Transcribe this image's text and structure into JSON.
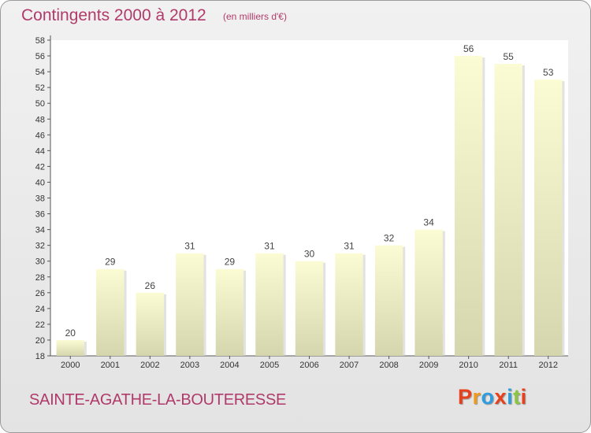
{
  "header": {
    "title": "Contingents 2000 à 2012",
    "subtitle": "(en milliers d'€)"
  },
  "footer": {
    "commune": "SAINTE-AGATHE-LA-BOUTERESSE",
    "logo_letters": [
      "P",
      "r",
      "o",
      "x",
      "i",
      "t",
      "i"
    ]
  },
  "colors": {
    "title": "#b03a6a",
    "bar_light": "#fbfbd4",
    "bar_dark": "#d6d6ae",
    "logo": [
      "#e8401c",
      "#f09a1a",
      "#2e9de0",
      "#e8401c",
      "#2e9de0",
      "#8cc63f",
      "#e8401c"
    ]
  },
  "chart_data": {
    "type": "bar",
    "title": "Contingents 2000 à 2012",
    "subtitle": "(en milliers d'€)",
    "categories": [
      "2000",
      "2001",
      "2002",
      "2003",
      "2004",
      "2005",
      "2006",
      "2007",
      "2008",
      "2009",
      "2010",
      "2011",
      "2012"
    ],
    "values": [
      20,
      29,
      26,
      31,
      29,
      31,
      30,
      31,
      32,
      34,
      56,
      55,
      53
    ],
    "ylim": [
      18,
      58
    ],
    "ytick_step": 2,
    "grid": false,
    "legend": "none"
  }
}
